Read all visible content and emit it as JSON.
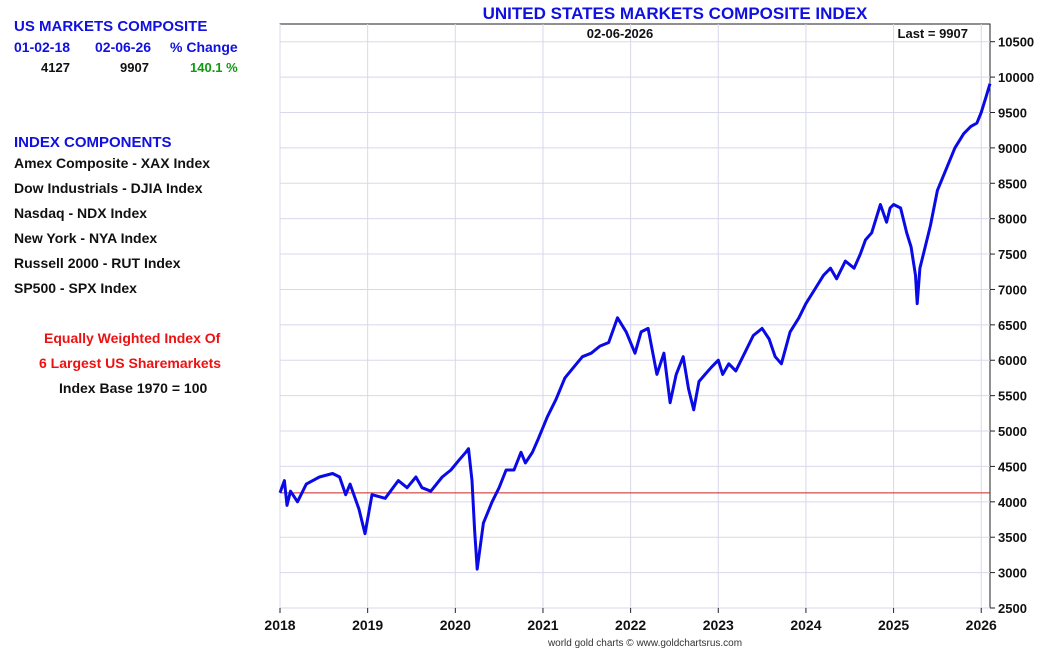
{
  "summary": {
    "title": "US MARKETS COMPOSITE",
    "col_start_date": "01-02-18",
    "col_end_date": "02-06-26",
    "col_change": "% Change",
    "start_value": "4127",
    "end_value": "9907",
    "pct_change": "140.1 %"
  },
  "components": {
    "title": "INDEX COMPONENTS",
    "items": [
      "Amex Composite - XAX Index",
      "Dow Industrials - DJIA Index",
      "Nasdaq - NDX Index",
      "New York - NYA Index",
      "Russell 2000 - RUT Index",
      "SP500 - SPX Index"
    ]
  },
  "notes": {
    "line1": "Equally Weighted Index Of",
    "line2": "6 Largest US Sharemarkets",
    "line3": "Index Base 1970 = 100"
  },
  "colors": {
    "accent": "#1010e0",
    "series": "#0a0ae6",
    "baseline": "#cc2222",
    "positive": "#119911",
    "note": "#ee1111",
    "grid": "#d8d8ec"
  },
  "chart_data": {
    "type": "line",
    "title": "UNITED STATES MARKETS COMPOSITE INDEX",
    "date_label": "02-06-2026",
    "last_label": "Last = 9907",
    "footer": "world gold charts © www.goldchartsrus.com",
    "xlabel": "",
    "ylabel": "",
    "xlim": [
      2018.0,
      2026.1
    ],
    "ylim": [
      2500,
      10750
    ],
    "x_ticks": [
      2018,
      2019,
      2020,
      2021,
      2022,
      2023,
      2024,
      2025,
      2026
    ],
    "y_ticks": [
      2500,
      3000,
      3500,
      4000,
      4500,
      5000,
      5500,
      6000,
      6500,
      7000,
      7500,
      8000,
      8500,
      9000,
      9500,
      10000,
      10500
    ],
    "grid": true,
    "baseline_value": 4127,
    "series": [
      {
        "x": [
          2018.0,
          2018.05,
          2018.08,
          2018.12,
          2018.2,
          2018.3,
          2018.45,
          2018.6,
          2018.68,
          2018.75,
          2018.8,
          2018.9,
          2018.97,
          2019.05,
          2019.2,
          2019.35,
          2019.45,
          2019.55,
          2019.62,
          2019.72,
          2019.85,
          2019.95,
          2020.05,
          2020.12,
          2020.15,
          2020.19,
          2020.22,
          2020.25,
          2020.32,
          2020.42,
          2020.5,
          2020.58,
          2020.67,
          2020.75,
          2020.8,
          2020.88,
          2020.95,
          2021.05,
          2021.15,
          2021.25,
          2021.35,
          2021.45,
          2021.55,
          2021.65,
          2021.75,
          2021.85,
          2021.95,
          2022.05,
          2022.12,
          2022.2,
          2022.3,
          2022.38,
          2022.45,
          2022.52,
          2022.6,
          2022.66,
          2022.72,
          2022.78,
          2022.85,
          2022.92,
          2023.0,
          2023.05,
          2023.12,
          2023.2,
          2023.3,
          2023.4,
          2023.5,
          2023.58,
          2023.65,
          2023.72,
          2023.82,
          2023.92,
          2024.0,
          2024.1,
          2024.2,
          2024.28,
          2024.35,
          2024.45,
          2024.55,
          2024.62,
          2024.68,
          2024.75,
          2024.85,
          2024.92,
          2024.96,
          2025.0,
          2025.08,
          2025.15,
          2025.2,
          2025.25,
          2025.27,
          2025.3,
          2025.35,
          2025.42,
          2025.5,
          2025.6,
          2025.7,
          2025.8,
          2025.88,
          2025.95,
          2026.0,
          2026.05,
          2026.1
        ],
        "y": [
          4127,
          4300,
          3950,
          4150,
          4000,
          4250,
          4350,
          4400,
          4350,
          4100,
          4250,
          3900,
          3550,
          4100,
          4050,
          4300,
          4200,
          4350,
          4200,
          4150,
          4350,
          4450,
          4600,
          4700,
          4750,
          4300,
          3600,
          3050,
          3700,
          4000,
          4200,
          4450,
          4450,
          4700,
          4550,
          4700,
          4900,
          5200,
          5450,
          5750,
          5900,
          6050,
          6100,
          6200,
          6250,
          6600,
          6400,
          6100,
          6400,
          6450,
          5800,
          6100,
          5400,
          5800,
          6050,
          5600,
          5300,
          5700,
          5800,
          5900,
          6000,
          5800,
          5950,
          5850,
          6100,
          6350,
          6450,
          6300,
          6050,
          5950,
          6400,
          6600,
          6800,
          7000,
          7200,
          7300,
          7150,
          7400,
          7300,
          7500,
          7700,
          7800,
          8200,
          7950,
          8150,
          8200,
          8150,
          7800,
          7600,
          7200,
          6800,
          7300,
          7550,
          7900,
          8400,
          8700,
          9000,
          9200,
          9300,
          9350,
          9500,
          9700,
          9907
        ]
      }
    ]
  }
}
